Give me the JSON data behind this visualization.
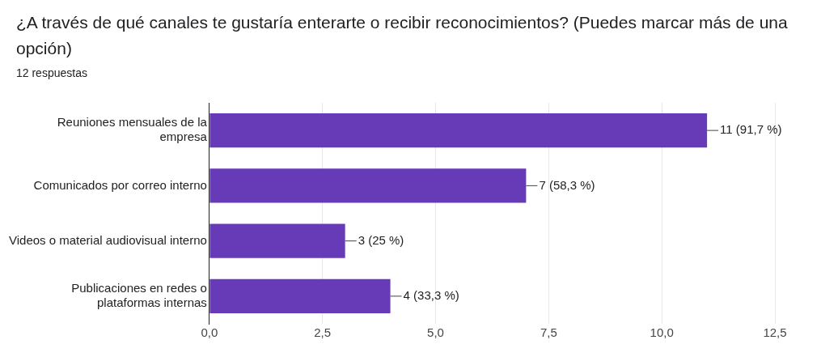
{
  "chart_data": {
    "type": "bar",
    "orientation": "horizontal",
    "title": "¿A través de qué canales te gustaría enterarte o recibir reconocimientos? (Puedes marcar más de una opción)",
    "subtitle": "12 respuestas",
    "categories": [
      "Reuniones mensuales de la empresa",
      "Comunicados por correo interno",
      "Videos o material audiovisual interno",
      "Publicaciones en redes o plataformas internas"
    ],
    "values": [
      11,
      7,
      3,
      4
    ],
    "color": "#673ab7",
    "value_labels": [
      "11 (91,7 %)",
      "7 (58,3 %)",
      "3 (25 %)",
      "4 (33,3 %)"
    ],
    "xlim": [
      0,
      12.5
    ],
    "xticks": [
      {
        "value": 0,
        "label": "0,0"
      },
      {
        "value": 2.5,
        "label": "2,5"
      },
      {
        "value": 5,
        "label": "5,0"
      },
      {
        "value": 7.5,
        "label": "7,5"
      },
      {
        "value": 10,
        "label": "10,0"
      },
      {
        "value": 12.5,
        "label": "12,5"
      }
    ],
    "grid": "x",
    "legend": false
  }
}
